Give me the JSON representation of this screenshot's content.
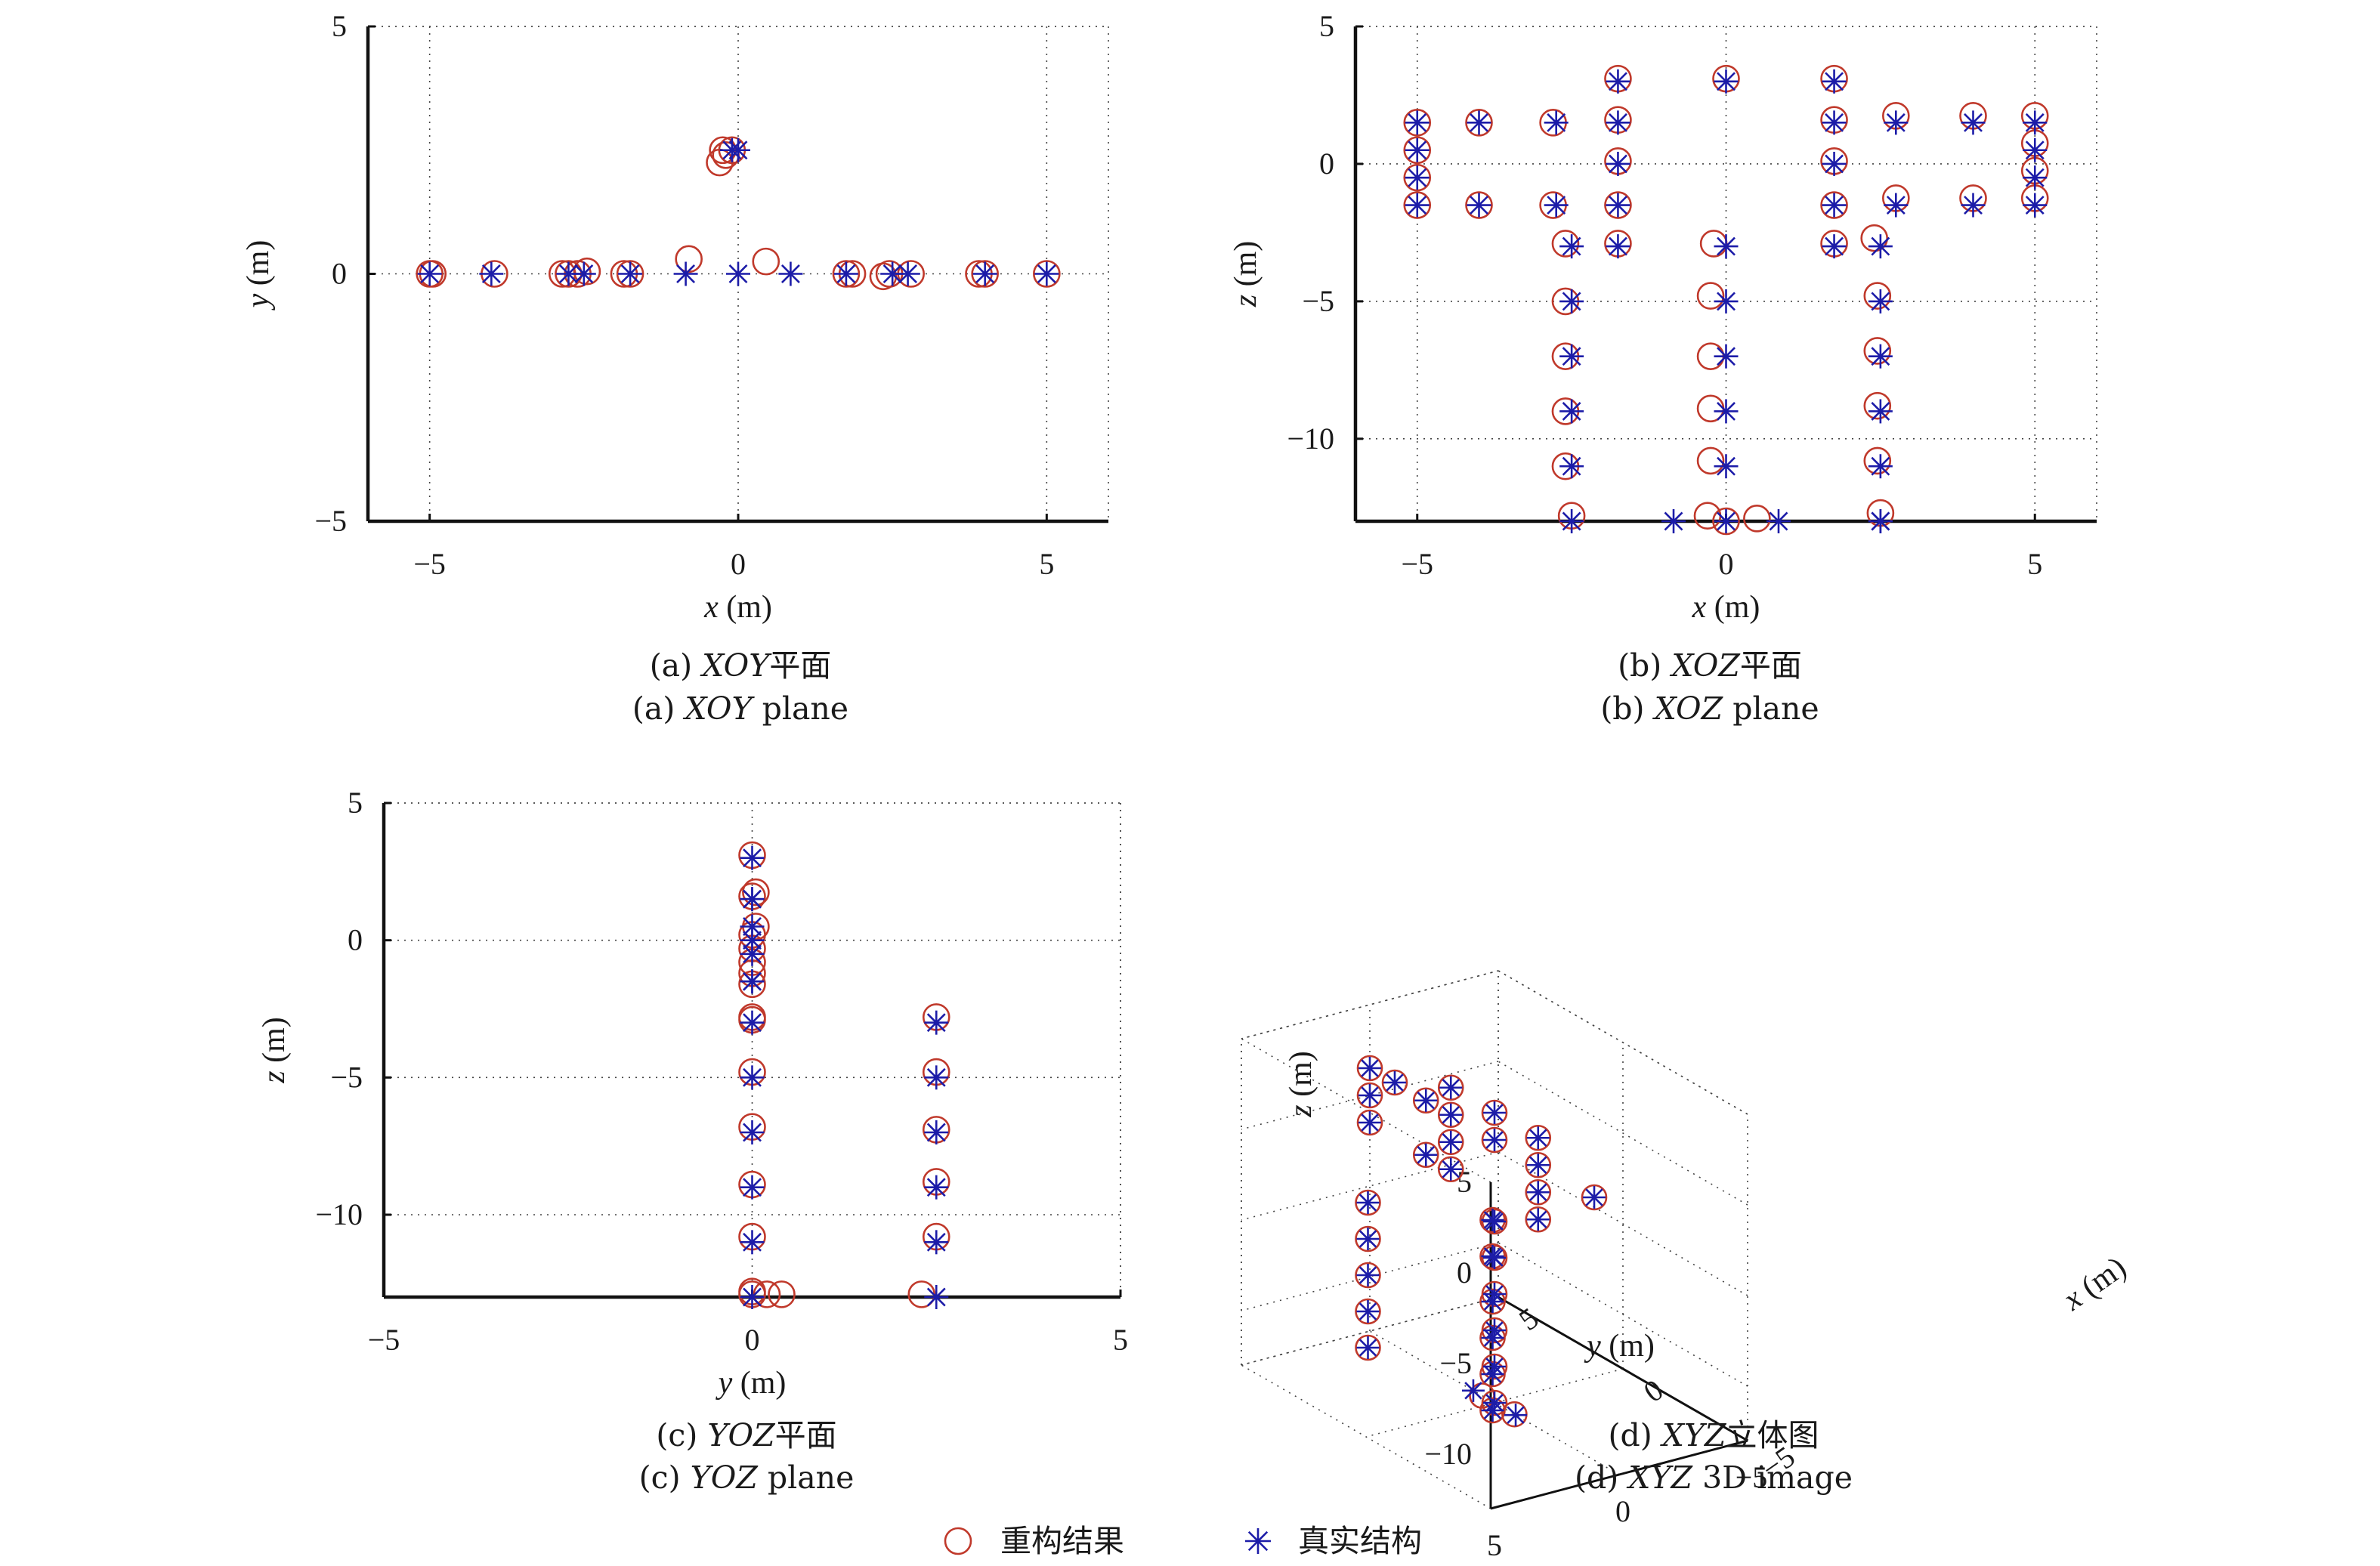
{
  "colors": {
    "reconstructed": "#c0392b",
    "true": "#1c1ca8"
  },
  "legend": {
    "reconstructed_label": "重构结果",
    "true_label": "真实结构"
  },
  "panels": {
    "a": {
      "caption_cn_prefix": "(a) ",
      "caption_cn_ital": "XOY",
      "caption_cn_suffix": "平面",
      "caption_en_prefix": "(a) ",
      "caption_en_ital": "XOY",
      "caption_en_suffix": " plane",
      "xlabel_var": "x",
      "xlabel_unit": " (m)",
      "ylabel_var": "y",
      "ylabel_unit": " (m)"
    },
    "b": {
      "caption_cn_prefix": "(b) ",
      "caption_cn_ital": "XOZ",
      "caption_cn_suffix": "平面",
      "caption_en_prefix": "(b) ",
      "caption_en_ital": "XOZ",
      "caption_en_suffix": " plane",
      "xlabel_var": "x",
      "xlabel_unit": " (m)",
      "ylabel_var": "z",
      "ylabel_unit": " (m)"
    },
    "c": {
      "caption_cn_prefix": "(c) ",
      "caption_cn_ital": "YOZ",
      "caption_cn_suffix": "平面",
      "caption_en_prefix": "(c) ",
      "caption_en_ital": "YOZ",
      "caption_en_suffix": " plane",
      "xlabel_var": "y",
      "xlabel_unit": " (m)",
      "ylabel_var": "z",
      "ylabel_unit": " (m)"
    },
    "d": {
      "caption_cn_prefix": "(d) ",
      "caption_cn_ital": "XYZ",
      "caption_cn_suffix": "立体图",
      "caption_en_prefix": "(d) ",
      "caption_en_ital": "XYZ",
      "caption_en_suffix": " 3D image",
      "xlabel_var": "x",
      "xlabel_unit": " (m)",
      "ylabel_var": "y",
      "ylabel_unit": " (m)",
      "zlabel_var": "z",
      "zlabel_unit": " (m)"
    }
  },
  "chart_data": [
    {
      "panel": "a",
      "type": "scatter",
      "xlim": [
        -6,
        6
      ],
      "ylim": [
        -5,
        5
      ],
      "xticks": [
        -5,
        0,
        5
      ],
      "yticks": [
        -5,
        0,
        5
      ],
      "grid": true,
      "series": [
        {
          "name": "重构结果",
          "marker": "circle",
          "x": [
            -5,
            -4.95,
            -3.95,
            -2.85,
            -2.75,
            -2.6,
            -2.45,
            -1.85,
            -1.75,
            -0.8,
            -0.25,
            -0.2,
            -0.1,
            0.45,
            1.75,
            1.85,
            2.35,
            2.45,
            2.8,
            3.9,
            4.0,
            5.0,
            -0.3
          ],
          "y": [
            0,
            0,
            0,
            0,
            0,
            0,
            0.05,
            0,
            0,
            0.3,
            2.5,
            2.4,
            2.5,
            0.25,
            0,
            0,
            -0.05,
            0,
            0,
            0,
            0,
            0,
            2.25
          ]
        },
        {
          "name": "真实结构",
          "marker": "asterisk",
          "x": [
            -5,
            -4,
            -2.75,
            -2.5,
            -1.75,
            -0.85,
            0,
            0.85,
            1.75,
            2.5,
            2.75,
            4,
            5,
            -0.1,
            0
          ],
          "y": [
            0,
            0,
            0,
            0,
            0,
            0,
            0,
            0,
            0,
            0,
            0,
            0,
            0,
            2.5,
            2.5
          ]
        }
      ]
    },
    {
      "panel": "b",
      "type": "scatter",
      "xlim": [
        -6,
        6
      ],
      "ylim": [
        -13,
        5
      ],
      "xticks": [
        -5,
        0,
        5
      ],
      "yticks": [
        -10,
        -5,
        0,
        5
      ],
      "grid": true,
      "series": [
        {
          "name": "重构结果",
          "marker": "circle",
          "x": [
            -5,
            -5,
            -5,
            -5,
            -4,
            -4,
            -2.8,
            -2.8,
            -1.75,
            -1.75,
            -1.75,
            -1.75,
            -1.75,
            0,
            1.75,
            1.75,
            1.75,
            1.75,
            1.75,
            2.75,
            2.75,
            4,
            4,
            5,
            5,
            5,
            5,
            -2.6,
            -2.6,
            -2.6,
            -2.6,
            -2.6,
            -2.5,
            -0.2,
            -0.25,
            -0.25,
            -0.25,
            -0.25,
            -0.3,
            0,
            0.5,
            2.4,
            2.45,
            2.45,
            2.45,
            2.45,
            2.5
          ],
          "y": [
            1.5,
            0.5,
            -0.5,
            -1.5,
            1.5,
            -1.5,
            1.5,
            -1.5,
            3.1,
            1.6,
            0.1,
            -1.5,
            -2.9,
            3.1,
            3.1,
            1.6,
            0.1,
            -1.5,
            -2.9,
            1.75,
            -1.25,
            1.75,
            -1.25,
            1.75,
            0.75,
            -0.25,
            -1.25,
            -2.9,
            -5,
            -7,
            -9,
            -11,
            -12.8,
            -2.9,
            -4.8,
            -7,
            -8.9,
            -10.8,
            -12.8,
            -13,
            -12.9,
            -2.7,
            -4.8,
            -6.8,
            -8.8,
            -10.8,
            -12.7
          ]
        },
        {
          "name": "真实结构",
          "marker": "asterisk",
          "x": [
            -5,
            -5,
            -5,
            -5,
            -4,
            -4,
            -2.75,
            -2.75,
            -1.75,
            -1.75,
            -1.75,
            -1.75,
            -1.75,
            0,
            1.75,
            1.75,
            1.75,
            1.75,
            1.75,
            2.75,
            2.75,
            4,
            4,
            5,
            5,
            5,
            5,
            -2.5,
            -2.5,
            -2.5,
            -2.5,
            -2.5,
            -2.5,
            0,
            0,
            0,
            0,
            0,
            0,
            -0.85,
            0.85,
            2.5,
            2.5,
            2.5,
            2.5,
            2.5,
            2.5,
            2.5
          ],
          "y": [
            1.5,
            0.5,
            -0.5,
            -1.5,
            1.5,
            -1.5,
            1.5,
            -1.5,
            3,
            1.5,
            0,
            -1.5,
            -3,
            3,
            3,
            1.5,
            0,
            -1.5,
            -3,
            1.5,
            -1.5,
            1.5,
            -1.5,
            1.5,
            0.5,
            -0.5,
            -1.5,
            -3,
            -5,
            -7,
            -9,
            -11,
            -13,
            -3,
            -5,
            -7,
            -9,
            -11,
            -13,
            -13,
            -13,
            -3,
            -5,
            -7,
            -9,
            -11,
            -13,
            -13
          ]
        }
      ]
    },
    {
      "panel": "c",
      "type": "scatter",
      "xlim": [
        -5,
        5
      ],
      "ylim": [
        -13,
        5
      ],
      "xticks": [
        -5,
        0,
        5
      ],
      "yticks": [
        -10,
        -5,
        0,
        5
      ],
      "grid": true,
      "series": [
        {
          "name": "重构结果",
          "marker": "circle",
          "x": [
            0,
            0,
            0.05,
            0.05,
            0,
            0,
            0,
            0,
            0,
            0,
            0,
            0,
            0,
            0,
            0,
            0,
            0,
            0.2,
            0.4,
            2.3,
            2.5,
            2.5,
            2.5,
            2.5,
            2.5
          ],
          "y": [
            3.1,
            1.6,
            1.75,
            0.5,
            0.2,
            -0.3,
            -0.8,
            -1.2,
            -1.6,
            -2.8,
            -2.9,
            -4.8,
            -6.8,
            -8.9,
            -10.8,
            -12.8,
            -12.9,
            -12.9,
            -12.9,
            -12.9,
            -2.8,
            -4.8,
            -6.9,
            -8.8,
            -10.8
          ]
        },
        {
          "name": "真实结构",
          "marker": "asterisk",
          "x": [
            0,
            0,
            0,
            0,
            0,
            0,
            0,
            0,
            0,
            0,
            0,
            0,
            0,
            0,
            2.5,
            2.5,
            2.5,
            2.5,
            2.5,
            2.5
          ],
          "y": [
            3,
            1.5,
            0.5,
            0,
            -0.5,
            -1.5,
            -3,
            -5,
            -7,
            -9,
            -11,
            -13,
            -1.5,
            1.5,
            -3,
            -5,
            -7,
            -9,
            -11,
            -13
          ]
        }
      ]
    },
    {
      "panel": "d",
      "type": "scatter3d",
      "xlim": [
        -5,
        5
      ],
      "ylim": [
        -5,
        5
      ],
      "zlim": [
        -13,
        5
      ],
      "xticks": [
        -5,
        0,
        5
      ],
      "yticks": [
        -5,
        0,
        5
      ],
      "zticks": [
        -10,
        -5,
        0,
        5
      ],
      "grid": true,
      "series": [
        {
          "name": "重构结果",
          "marker": "circle",
          "x": [
            -2.5,
            -2.5,
            -2.5,
            -2.5,
            -2.5,
            -2.5,
            0,
            0,
            0,
            0,
            0,
            0,
            0,
            -1.75,
            -1.75,
            -1.75,
            1.75,
            1.75,
            1.75,
            1.75,
            2.75,
            2.75,
            4,
            5,
            5,
            5,
            0.5,
            -0.8,
            2.5,
            2.5,
            2.5,
            2.5,
            2.5,
            -1.75,
            0,
            -4
          ],
          "y": [
            2.5,
            2.5,
            2.5,
            2.5,
            2.5,
            2.5,
            0,
            0,
            0,
            0,
            0,
            0,
            0,
            0,
            0,
            0,
            0,
            0,
            0,
            0,
            0,
            0,
            0,
            0,
            0,
            0,
            0,
            0,
            2.5,
            2.5,
            2.5,
            2.5,
            2.5,
            0,
            0,
            0
          ],
          "z": [
            0,
            -2,
            -4.5,
            -6.5,
            -8.5,
            -10.5,
            3,
            -3,
            -5,
            -7,
            -9,
            -11,
            -13,
            1.5,
            0,
            -1.5,
            3,
            1.5,
            0,
            -1.5,
            1.5,
            -1.5,
            1.5,
            1.5,
            0,
            -1.5,
            -13,
            -13,
            -3,
            -5,
            -7,
            -9,
            -11,
            3,
            1.5,
            1.5
          ]
        },
        {
          "name": "真实结构",
          "marker": "asterisk",
          "x": [
            -2.5,
            -2.5,
            -2.5,
            -2.5,
            -2.5,
            -2.5,
            0,
            0,
            0,
            0,
            0,
            0,
            0,
            -1.75,
            -1.75,
            -1.75,
            1.75,
            1.75,
            1.75,
            1.75,
            2.75,
            2.75,
            4,
            5,
            5,
            5,
            0.85,
            -0.85,
            2.5,
            2.5,
            2.5,
            2.5,
            2.5,
            -1.75,
            0,
            -4
          ],
          "y": [
            2.5,
            2.5,
            2.5,
            2.5,
            2.5,
            2.5,
            0,
            0,
            0,
            0,
            0,
            0,
            0,
            0,
            0,
            0,
            0,
            0,
            0,
            0,
            0,
            0,
            0,
            0,
            0,
            0,
            0,
            0,
            2.5,
            2.5,
            2.5,
            2.5,
            2.5,
            0,
            0,
            0
          ],
          "z": [
            0,
            -2,
            -4.5,
            -6.5,
            -8.5,
            -10.5,
            3,
            -3,
            -5,
            -7,
            -9,
            -11,
            -13,
            1.5,
            0,
            -1.5,
            3,
            1.5,
            0,
            -1.5,
            1.5,
            -1.5,
            1.5,
            1.5,
            0,
            -1.5,
            -13,
            -13,
            -3,
            -5,
            -7,
            -9,
            -11,
            3,
            1.5,
            1.5
          ]
        }
      ]
    }
  ]
}
